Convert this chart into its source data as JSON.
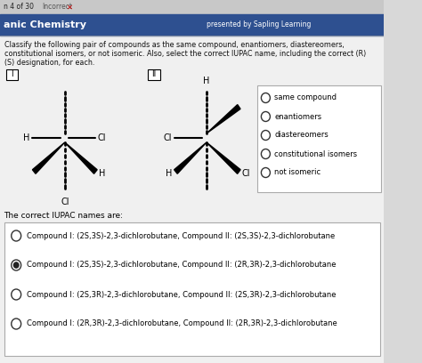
{
  "bg_top_bar": "#c8c8c8",
  "bg_header": "#2e5090",
  "bg_main": "#d8d8d8",
  "header_left": "anic Chemistry",
  "header_right": "presented by Sapling Learning",
  "question_text1": "Classify the following pair of compounds as the same compound, enantiomers, diastereomers,",
  "question_text2": "constitutional isomers, or not isomeric. Also, select the correct IUPAC name, including the correct (R)",
  "question_text3": "(S) designation, for each.",
  "radio_options": [
    "same compound",
    "enantiomers",
    "diastereomers",
    "constitutional isomers",
    "not isomeric"
  ],
  "iupac_header": "The correct IUPAC names are:",
  "iupac_options": [
    "Compound I: (2S,3S)-2,3-dichlorobutane, Compound II: (2S,3S)-2,3-dichlorobutane",
    "Compound I: (2S,3S)-2,3-dichlorobutane, Compound II: (2R,3R)-2,3-dichlorobutane",
    "Compound I: (2S,3R)-2,3-dichlorobutane, Compound II: (2S,3R)-2,3-dichlorobutane",
    "Compound I: (2R,3R)-2,3-dichlorobutane, Compound II: (2R,3R)-2,3-dichlorobutane"
  ],
  "iupac_selected": 1,
  "text_color": "#111111",
  "incorrect_color": "#cc0000"
}
